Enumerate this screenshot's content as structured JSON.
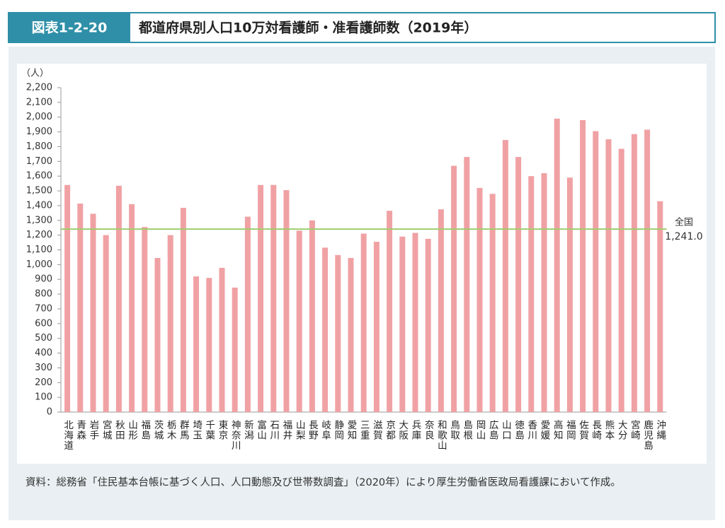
{
  "header": {
    "label": "図表1-2-20",
    "title": "都道府県別人口10万対看護師・准看護師数（2019年）"
  },
  "chart_data": {
    "type": "bar",
    "y_unit": "（人）",
    "categories": [
      "北海道",
      "青森",
      "岩手",
      "宮城",
      "秋田",
      "山形",
      "福島",
      "茨城",
      "栃木",
      "群馬",
      "埼玉",
      "千葉",
      "東京",
      "神奈川",
      "新潟",
      "富山",
      "石川",
      "福井",
      "山梨",
      "長野",
      "岐阜",
      "静岡",
      "愛知",
      "三重",
      "滋賀",
      "京都",
      "大阪",
      "兵庫",
      "奈良",
      "和歌山",
      "鳥取",
      "島根",
      "岡山",
      "広島",
      "山口",
      "徳島",
      "香川",
      "愛媛",
      "高知",
      "福岡",
      "佐賀",
      "長崎",
      "熊本",
      "大分",
      "宮崎",
      "鹿児島",
      "沖縄"
    ],
    "values": [
      1540,
      1414,
      1345,
      1200,
      1535,
      1410,
      1255,
      1045,
      1200,
      1385,
      920,
      910,
      978,
      844,
      1325,
      1540,
      1540,
      1505,
      1230,
      1300,
      1115,
      1065,
      1045,
      1210,
      1155,
      1365,
      1190,
      1215,
      1175,
      1375,
      1670,
      1730,
      1520,
      1480,
      1845,
      1730,
      1600,
      1620,
      1990,
      1590,
      1980,
      1905,
      1850,
      1785,
      1885,
      1915,
      1430
    ],
    "color": "#f0a1a4",
    "ylim": [
      0,
      2200
    ],
    "yticks": [
      0,
      100,
      200,
      300,
      400,
      500,
      600,
      700,
      800,
      900,
      {
        "value": 1000,
        "label": "1,000"
      },
      {
        "value": 1100,
        "label": "1,100"
      },
      {
        "value": 1200,
        "label": "1,200"
      },
      {
        "value": 1300,
        "label": "1,300"
      },
      {
        "value": 1400,
        "label": "1,400"
      },
      {
        "value": 1500,
        "label": "1,500"
      },
      {
        "value": 1600,
        "label": "1,600"
      },
      {
        "value": 1700,
        "label": "1,700"
      },
      {
        "value": 1800,
        "label": "1,800"
      },
      {
        "value": 1900,
        "label": "1,900"
      },
      {
        "value": 2000,
        "label": "2,000"
      },
      {
        "value": 2100,
        "label": "2,100"
      },
      {
        "value": 2200,
        "label": "2,200"
      }
    ],
    "grid": false,
    "reference_line": {
      "label": "全国",
      "value": 1241,
      "value_label": "1,241.0",
      "color": "#9fcd6e"
    }
  },
  "source": "資料：総務省「住民基本台帳に基づく人口、人口動態及び世帯数調査」（2020年）により厚生労働省医政局看護課において作成。"
}
